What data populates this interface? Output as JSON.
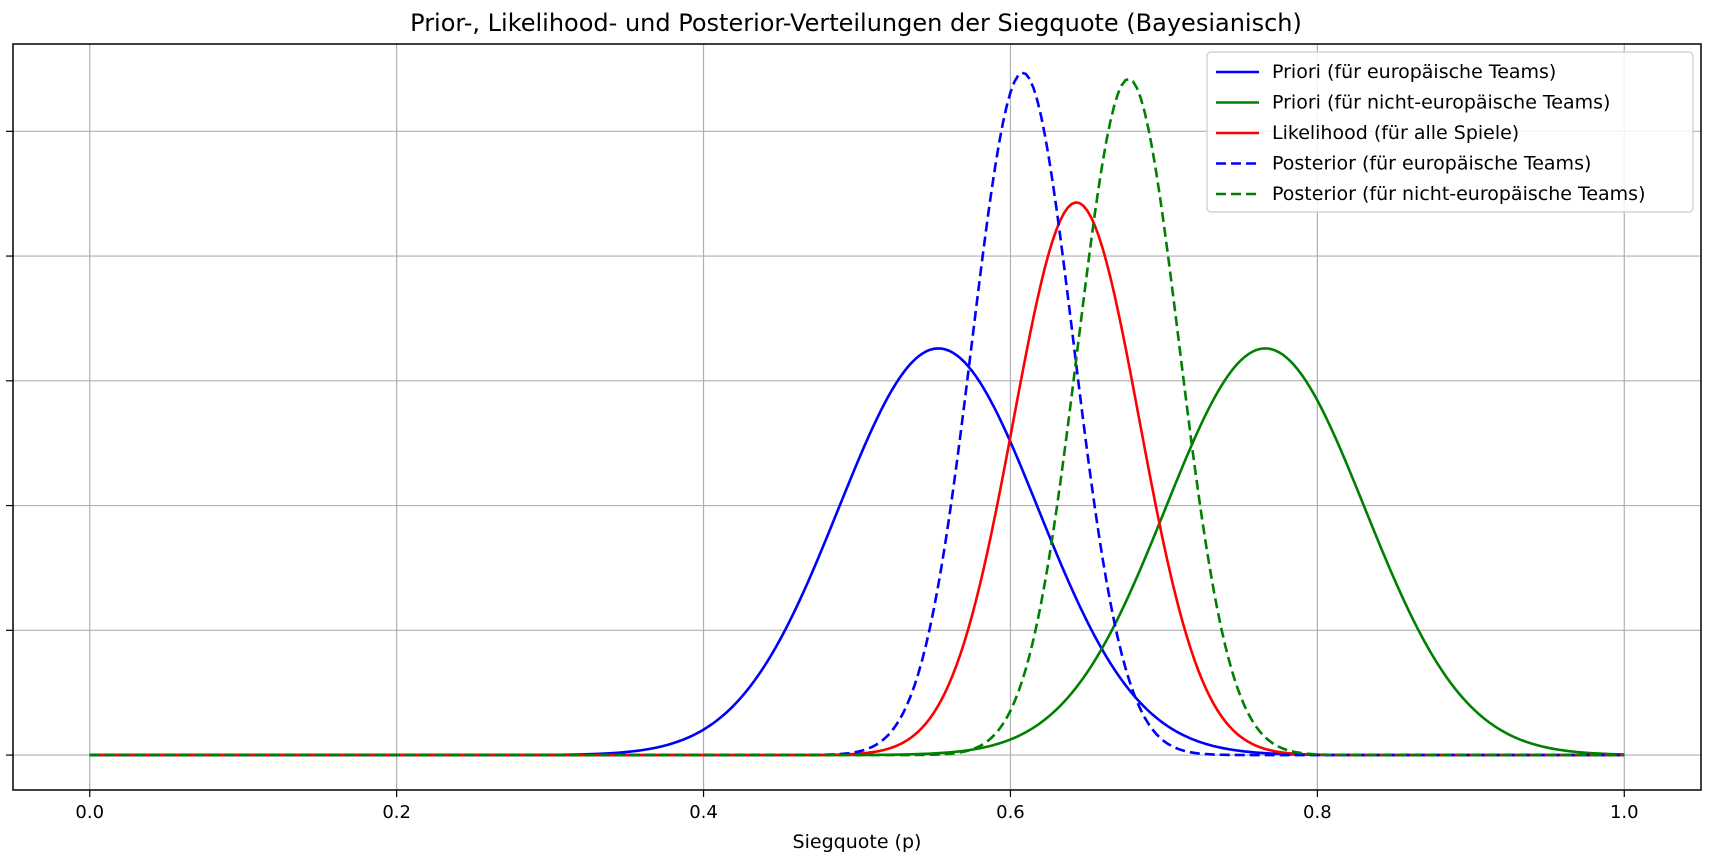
{
  "chart_data": {
    "type": "line",
    "title": "Prior-, Likelihood- und Posterior-Verteilungen der Siegquote (Bayesianisch)",
    "xlabel": "Siegquote (p)",
    "ylabel": "",
    "xlim": [
      -0.05,
      1.05
    ],
    "ylim": [
      -0.28,
      5.7
    ],
    "x_ticks": [
      "0.0",
      "0.2",
      "0.4",
      "0.6",
      "0.8",
      "1.0"
    ],
    "x_tick_values": [
      0.0,
      0.2,
      0.4,
      0.6,
      0.8,
      1.0
    ],
    "y_ticks": [
      0,
      1,
      2,
      3,
      4,
      5
    ],
    "y_tick_labels_visible": false,
    "grid": true,
    "legend_position": "top-right",
    "series": [
      {
        "name": "Priori (für europäische Teams)",
        "color": "#0000ff",
        "dash": "solid",
        "mean": 0.553,
        "sd": 0.065,
        "peak": 3.26
      },
      {
        "name": "Priori (für nicht-europäische Teams)",
        "color": "#008000",
        "dash": "solid",
        "mean": 0.766,
        "sd": 0.065,
        "peak": 3.26
      },
      {
        "name": "Likelihood (für alle Spiele)",
        "color": "#ff0000",
        "dash": "solid",
        "mean": 0.643,
        "sd": 0.041,
        "peak": 4.43
      },
      {
        "name": "Posterior (für europäische Teams)",
        "color": "#0000ff",
        "dash": "dashed",
        "mean": 0.608,
        "sd": 0.033,
        "peak": 5.47
      },
      {
        "name": "Posterior (für nicht-europäische Teams)",
        "color": "#008000",
        "dash": "dashed",
        "mean": 0.677,
        "sd": 0.033,
        "peak": 5.42
      }
    ]
  }
}
